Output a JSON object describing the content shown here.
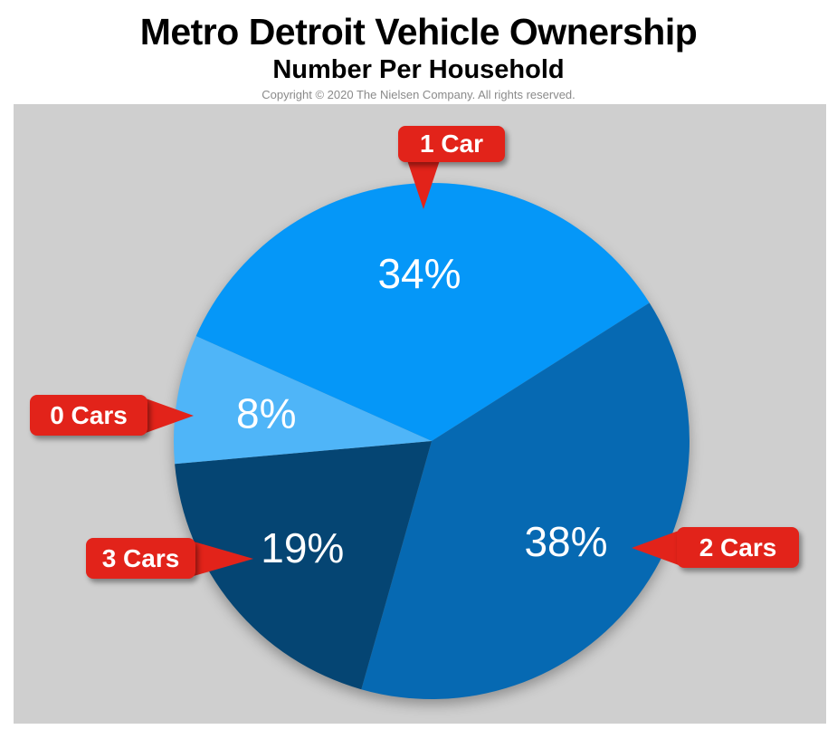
{
  "header": {
    "title": "Metro Detroit Vehicle Ownership",
    "subtitle": "Number Per Household",
    "copyright": "Copyright © 2020 The Nielsen Company. All rights reserved."
  },
  "colors": {
    "panel_background": "#cfcfcf",
    "callout_red": "#e2231a",
    "slice_label_text": "#ffffff",
    "title_text": "#000000",
    "copyright_text": "#8a8a8a"
  },
  "chart_data": {
    "type": "pie",
    "title": "Metro Detroit Vehicle Ownership",
    "subtitle": "Number Per Household",
    "categories": [
      "1 Car",
      "2 Cars",
      "3 Cars",
      "0 Cars"
    ],
    "values": [
      34,
      38,
      19,
      8
    ],
    "unit": "percent",
    "slice_labels": [
      "34%",
      "38%",
      "19%",
      "8%"
    ],
    "slice_colors": [
      "#0597f8",
      "#0669b2",
      "#054573",
      "#4fb5f8"
    ],
    "start_angle_deg": 156,
    "direction": "clockwise",
    "label_radius_fraction": 0.65,
    "legend_position": "external-callouts"
  },
  "callouts": [
    {
      "label": "1 Car",
      "pointer": "down"
    },
    {
      "label": "0 Cars",
      "pointer": "right"
    },
    {
      "label": "3 Cars",
      "pointer": "right"
    },
    {
      "label": "2 Cars",
      "pointer": "left"
    }
  ]
}
